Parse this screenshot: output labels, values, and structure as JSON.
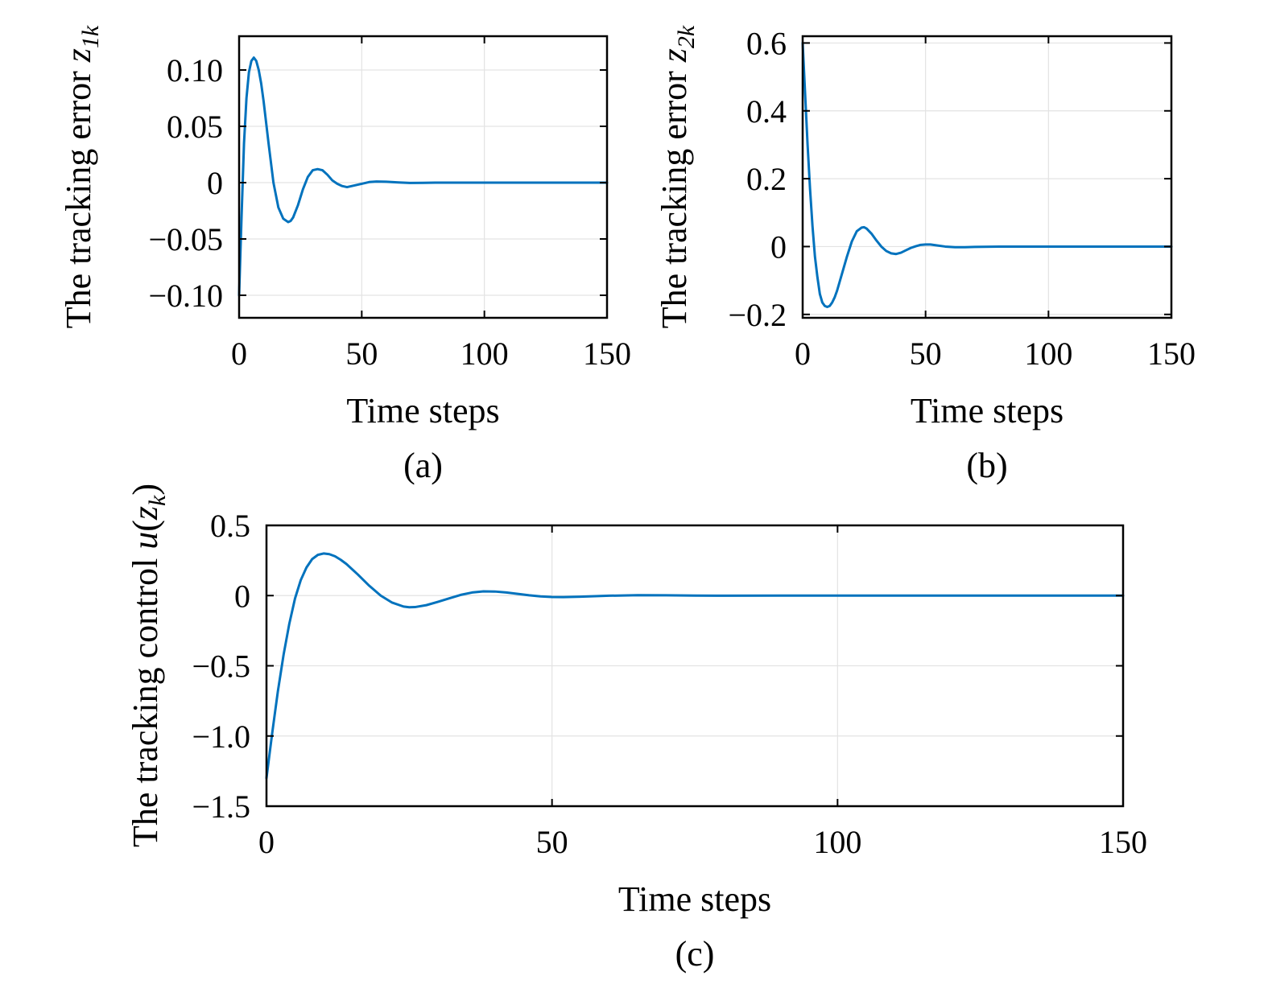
{
  "chart_data": [
    {
      "type": "line",
      "panel_label": "(a)",
      "xlabel": "Time steps",
      "ylabel": {
        "prefix": "The tracking error ",
        "symbol": "z",
        "subscript": "1k"
      },
      "xlim": [
        0,
        150
      ],
      "ylim": [
        -0.12,
        0.13
      ],
      "xticks": [
        0,
        50,
        100,
        150
      ],
      "xtick_labels": [
        "0",
        "50",
        "100",
        "150"
      ],
      "yticks": [
        -0.1,
        -0.05,
        0,
        0.05,
        0.1
      ],
      "ytick_labels": [
        "−0.10",
        "−0.05",
        "0",
        "0.05",
        "0.10"
      ],
      "grid": true,
      "color": "#0072BD",
      "x": [
        0,
        1,
        2,
        3,
        4,
        5,
        6,
        7,
        8,
        9,
        10,
        12,
        14,
        16,
        18,
        20,
        21,
        22,
        24,
        26,
        28,
        30,
        32,
        34,
        36,
        38,
        40,
        42,
        44,
        46,
        48,
        50,
        53,
        56,
        60,
        65,
        70,
        75,
        80,
        90,
        100,
        110,
        120,
        130,
        140,
        150
      ],
      "y": [
        -0.1,
        -0.03,
        0.035,
        0.075,
        0.098,
        0.108,
        0.111,
        0.108,
        0.1,
        0.088,
        0.072,
        0.035,
        0.0,
        -0.022,
        -0.032,
        -0.035,
        -0.034,
        -0.031,
        -0.02,
        -0.006,
        0.005,
        0.011,
        0.012,
        0.011,
        0.007,
        0.002,
        -0.001,
        -0.003,
        -0.004,
        -0.003,
        -0.002,
        -0.001,
        0.0005,
        0.001,
        0.0008,
        0.0002,
        -0.0003,
        -0.0002,
        0.0,
        0.0,
        0.0,
        0.0,
        0.0,
        0.0,
        0.0,
        0.0
      ]
    },
    {
      "type": "line",
      "panel_label": "(b)",
      "xlabel": "Time steps",
      "ylabel": {
        "prefix": "The tracking error ",
        "symbol": "z",
        "subscript": "2k"
      },
      "xlim": [
        0,
        150
      ],
      "ylim": [
        -0.21,
        0.62
      ],
      "xticks": [
        0,
        50,
        100,
        150
      ],
      "xtick_labels": [
        "0",
        "50",
        "100",
        "150"
      ],
      "yticks": [
        -0.2,
        0,
        0.2,
        0.4,
        0.6
      ],
      "ytick_labels": [
        "−0.2",
        "0",
        "0.2",
        "0.4",
        "0.6"
      ],
      "grid": true,
      "color": "#0072BD",
      "x": [
        0,
        1,
        2,
        3,
        4,
        5,
        6,
        7,
        8,
        9,
        10,
        11,
        12,
        13,
        14,
        16,
        18,
        20,
        22,
        24,
        25,
        26,
        28,
        30,
        32,
        34,
        36,
        38,
        40,
        42,
        44,
        46,
        48,
        50,
        52,
        54,
        58,
        62,
        66,
        70,
        80,
        90,
        100,
        110,
        120,
        130,
        140,
        150
      ],
      "y": [
        0.6,
        0.45,
        0.3,
        0.17,
        0.06,
        -0.03,
        -0.09,
        -0.14,
        -0.165,
        -0.175,
        -0.178,
        -0.175,
        -0.165,
        -0.15,
        -0.13,
        -0.08,
        -0.03,
        0.015,
        0.045,
        0.056,
        0.057,
        0.053,
        0.038,
        0.018,
        0.0,
        -0.013,
        -0.02,
        -0.022,
        -0.018,
        -0.011,
        -0.004,
        0.001,
        0.005,
        0.006,
        0.006,
        0.004,
        0.0,
        -0.002,
        -0.002,
        -0.001,
        0.0,
        0.0,
        0.0,
        0.0,
        0.0,
        0.0,
        0.0,
        0.0
      ]
    },
    {
      "type": "line",
      "panel_label": "(c)",
      "xlabel": "Time steps",
      "ylabel": {
        "prefix": "The tracking control ",
        "symbol": "u",
        "open": "(",
        "inner_symbol": "z",
        "subscript": "k",
        "close": ")"
      },
      "xlim": [
        0,
        150
      ],
      "ylim": [
        -1.5,
        0.5
      ],
      "xticks": [
        0,
        50,
        100,
        150
      ],
      "xtick_labels": [
        "0",
        "50",
        "100",
        "150"
      ],
      "yticks": [
        -1.5,
        -1.0,
        -0.5,
        0,
        0.5
      ],
      "ytick_labels": [
        "−1.5",
        "−1.0",
        "−0.5",
        "0",
        "0.5"
      ],
      "grid": true,
      "color": "#0072BD",
      "x": [
        0,
        1,
        2,
        3,
        4,
        5,
        6,
        7,
        8,
        9,
        10,
        11,
        12,
        13,
        14,
        16,
        18,
        20,
        22,
        24,
        25,
        26,
        28,
        30,
        32,
        34,
        36,
        38,
        40,
        42,
        44,
        46,
        48,
        50,
        52,
        55,
        60,
        65,
        70,
        75,
        80,
        90,
        100,
        110,
        120,
        130,
        140,
        150
      ],
      "y": [
        -1.3,
        -0.98,
        -0.68,
        -0.42,
        -0.2,
        -0.02,
        0.11,
        0.2,
        0.26,
        0.29,
        0.3,
        0.295,
        0.28,
        0.255,
        0.225,
        0.15,
        0.07,
        0.0,
        -0.05,
        -0.078,
        -0.083,
        -0.082,
        -0.068,
        -0.045,
        -0.02,
        0.005,
        0.022,
        0.03,
        0.029,
        0.022,
        0.012,
        0.002,
        -0.006,
        -0.01,
        -0.011,
        -0.008,
        -0.001,
        0.003,
        0.002,
        0.0,
        -0.001,
        0.0,
        0.0,
        0.0,
        0.0,
        0.0,
        0.0,
        0.0
      ]
    }
  ]
}
